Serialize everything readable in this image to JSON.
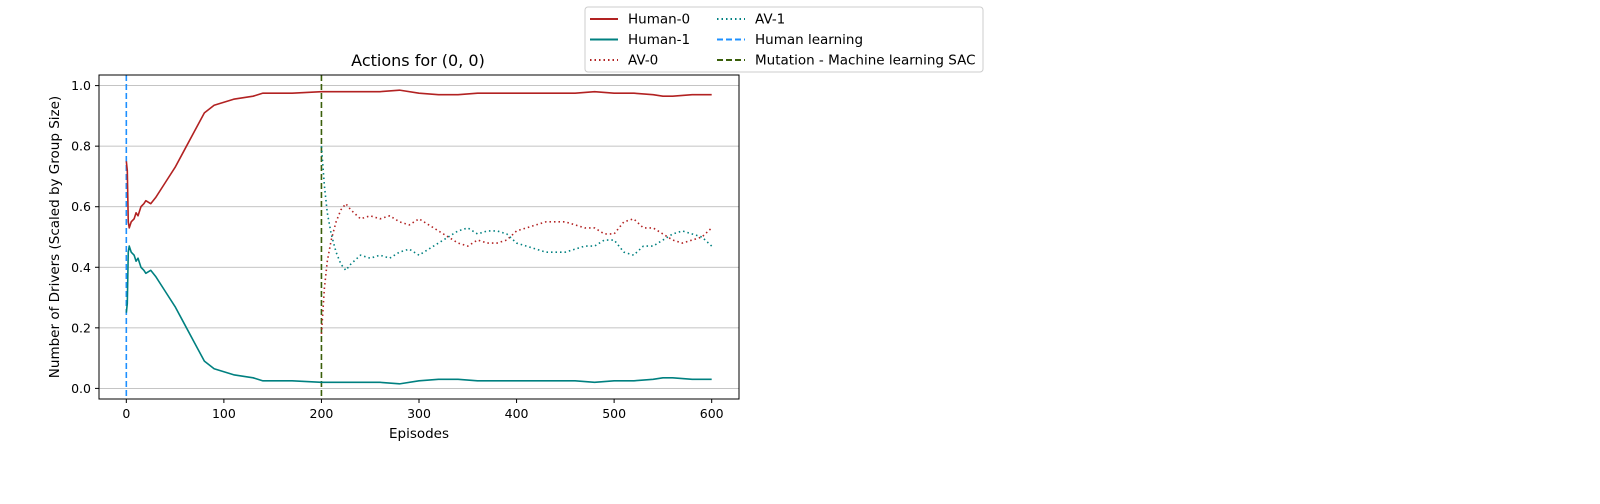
{
  "chart_data": {
    "type": "line",
    "title": "Actions for (0, 0)",
    "xlabel": "Episodes",
    "ylabel": "Number of Drivers (Scaled by Group Size)",
    "xlim": [
      -28,
      628
    ],
    "ylim": [
      -0.035,
      1.035
    ],
    "xticks": [
      0,
      100,
      200,
      300,
      400,
      500,
      600
    ],
    "xtick_labels": [
      "0",
      "100",
      "200",
      "300",
      "400",
      "500",
      "600"
    ],
    "yticks": [
      0.0,
      0.2,
      0.4,
      0.6,
      0.8,
      1.0
    ],
    "ytick_labels": [
      "0.0",
      "0.2",
      "0.4",
      "0.6",
      "0.8",
      "1.0"
    ],
    "grid": "horizontal",
    "legend_position": "upper-right, outside plot",
    "series": [
      {
        "name": "Human-0",
        "color": "#b22222",
        "style": "solid",
        "points": [
          [
            0,
            0.75
          ],
          [
            1,
            0.72
          ],
          [
            2,
            0.55
          ],
          [
            3,
            0.53
          ],
          [
            5,
            0.55
          ],
          [
            8,
            0.56
          ],
          [
            10,
            0.58
          ],
          [
            12,
            0.57
          ],
          [
            15,
            0.6
          ],
          [
            18,
            0.61
          ],
          [
            20,
            0.62
          ],
          [
            25,
            0.61
          ],
          [
            30,
            0.63
          ],
          [
            40,
            0.68
          ],
          [
            50,
            0.73
          ],
          [
            60,
            0.79
          ],
          [
            70,
            0.85
          ],
          [
            80,
            0.91
          ],
          [
            90,
            0.935
          ],
          [
            100,
            0.945
          ],
          [
            110,
            0.955
          ],
          [
            120,
            0.96
          ],
          [
            130,
            0.965
          ],
          [
            140,
            0.975
          ],
          [
            150,
            0.975
          ],
          [
            170,
            0.975
          ],
          [
            200,
            0.98
          ],
          [
            230,
            0.98
          ],
          [
            260,
            0.98
          ],
          [
            280,
            0.985
          ],
          [
            300,
            0.975
          ],
          [
            320,
            0.97
          ],
          [
            340,
            0.97
          ],
          [
            360,
            0.975
          ],
          [
            380,
            0.975
          ],
          [
            400,
            0.975
          ],
          [
            420,
            0.975
          ],
          [
            440,
            0.975
          ],
          [
            460,
            0.975
          ],
          [
            480,
            0.98
          ],
          [
            500,
            0.975
          ],
          [
            520,
            0.975
          ],
          [
            540,
            0.97
          ],
          [
            550,
            0.965
          ],
          [
            560,
            0.965
          ],
          [
            580,
            0.97
          ],
          [
            600,
            0.97
          ]
        ]
      },
      {
        "name": "Human-1",
        "color": "#008080",
        "style": "solid",
        "points": [
          [
            0,
            0.25
          ],
          [
            1,
            0.28
          ],
          [
            2,
            0.45
          ],
          [
            3,
            0.47
          ],
          [
            5,
            0.45
          ],
          [
            8,
            0.44
          ],
          [
            10,
            0.42
          ],
          [
            12,
            0.43
          ],
          [
            15,
            0.4
          ],
          [
            18,
            0.39
          ],
          [
            20,
            0.38
          ],
          [
            25,
            0.39
          ],
          [
            30,
            0.37
          ],
          [
            40,
            0.32
          ],
          [
            50,
            0.27
          ],
          [
            60,
            0.21
          ],
          [
            70,
            0.15
          ],
          [
            80,
            0.09
          ],
          [
            90,
            0.065
          ],
          [
            100,
            0.055
          ],
          [
            110,
            0.045
          ],
          [
            120,
            0.04
          ],
          [
            130,
            0.035
          ],
          [
            140,
            0.025
          ],
          [
            150,
            0.025
          ],
          [
            170,
            0.025
          ],
          [
            200,
            0.02
          ],
          [
            230,
            0.02
          ],
          [
            260,
            0.02
          ],
          [
            280,
            0.015
          ],
          [
            300,
            0.025
          ],
          [
            320,
            0.03
          ],
          [
            340,
            0.03
          ],
          [
            360,
            0.025
          ],
          [
            380,
            0.025
          ],
          [
            400,
            0.025
          ],
          [
            420,
            0.025
          ],
          [
            440,
            0.025
          ],
          [
            460,
            0.025
          ],
          [
            480,
            0.02
          ],
          [
            500,
            0.025
          ],
          [
            520,
            0.025
          ],
          [
            540,
            0.03
          ],
          [
            550,
            0.035
          ],
          [
            560,
            0.035
          ],
          [
            580,
            0.03
          ],
          [
            600,
            0.03
          ]
        ]
      },
      {
        "name": "AV-0",
        "color": "#b22222",
        "style": "dotted",
        "points": [
          [
            200,
            0.18
          ],
          [
            203,
            0.33
          ],
          [
            206,
            0.42
          ],
          [
            210,
            0.49
          ],
          [
            215,
            0.55
          ],
          [
            220,
            0.59
          ],
          [
            225,
            0.61
          ],
          [
            230,
            0.59
          ],
          [
            240,
            0.56
          ],
          [
            250,
            0.57
          ],
          [
            260,
            0.56
          ],
          [
            270,
            0.57
          ],
          [
            280,
            0.55
          ],
          [
            290,
            0.54
          ],
          [
            300,
            0.56
          ],
          [
            310,
            0.54
          ],
          [
            320,
            0.52
          ],
          [
            330,
            0.5
          ],
          [
            340,
            0.48
          ],
          [
            350,
            0.47
          ],
          [
            360,
            0.49
          ],
          [
            370,
            0.48
          ],
          [
            380,
            0.48
          ],
          [
            390,
            0.49
          ],
          [
            400,
            0.52
          ],
          [
            410,
            0.53
          ],
          [
            420,
            0.54
          ],
          [
            430,
            0.55
          ],
          [
            440,
            0.55
          ],
          [
            450,
            0.55
          ],
          [
            460,
            0.54
          ],
          [
            470,
            0.53
          ],
          [
            480,
            0.53
          ],
          [
            490,
            0.51
          ],
          [
            500,
            0.51
          ],
          [
            510,
            0.55
          ],
          [
            520,
            0.56
          ],
          [
            530,
            0.53
          ],
          [
            540,
            0.53
          ],
          [
            550,
            0.51
          ],
          [
            560,
            0.49
          ],
          [
            570,
            0.48
          ],
          [
            580,
            0.49
          ],
          [
            590,
            0.5
          ],
          [
            600,
            0.53
          ]
        ]
      },
      {
        "name": "AV-1",
        "color": "#008080",
        "style": "dotted",
        "points": [
          [
            200,
            0.8
          ],
          [
            203,
            0.67
          ],
          [
            206,
            0.58
          ],
          [
            210,
            0.51
          ],
          [
            215,
            0.45
          ],
          [
            220,
            0.41
          ],
          [
            225,
            0.39
          ],
          [
            230,
            0.41
          ],
          [
            240,
            0.44
          ],
          [
            250,
            0.43
          ],
          [
            260,
            0.44
          ],
          [
            270,
            0.43
          ],
          [
            280,
            0.45
          ],
          [
            290,
            0.46
          ],
          [
            300,
            0.44
          ],
          [
            310,
            0.46
          ],
          [
            320,
            0.48
          ],
          [
            330,
            0.5
          ],
          [
            340,
            0.52
          ],
          [
            350,
            0.53
          ],
          [
            360,
            0.51
          ],
          [
            370,
            0.52
          ],
          [
            380,
            0.52
          ],
          [
            390,
            0.51
          ],
          [
            400,
            0.48
          ],
          [
            410,
            0.47
          ],
          [
            420,
            0.46
          ],
          [
            430,
            0.45
          ],
          [
            440,
            0.45
          ],
          [
            450,
            0.45
          ],
          [
            460,
            0.46
          ],
          [
            470,
            0.47
          ],
          [
            480,
            0.47
          ],
          [
            490,
            0.49
          ],
          [
            500,
            0.49
          ],
          [
            510,
            0.45
          ],
          [
            520,
            0.44
          ],
          [
            530,
            0.47
          ],
          [
            540,
            0.47
          ],
          [
            550,
            0.49
          ],
          [
            560,
            0.51
          ],
          [
            570,
            0.52
          ],
          [
            580,
            0.51
          ],
          [
            590,
            0.5
          ],
          [
            600,
            0.47
          ]
        ]
      },
      {
        "name": "Human learning",
        "color": "#1e90ff",
        "style": "dashed",
        "vline_x": 0
      },
      {
        "name": "Mutation - Machine learning SAC",
        "color": "#3a5f0b",
        "style": "dashed",
        "vline_x": 200
      }
    ]
  }
}
